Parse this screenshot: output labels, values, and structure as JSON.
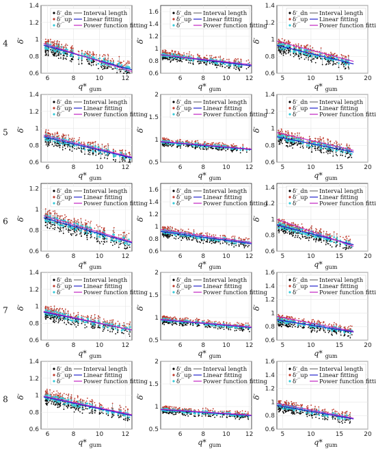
{
  "legend": {
    "markers": [
      "δ′_dn",
      "δ′_up",
      "δ′"
    ],
    "lines": [
      "Interval length",
      "Linear fitting",
      "Power function fitting"
    ]
  },
  "x_label": "q*",
  "x_label_sub": "gum",
  "y_label": "δ′",
  "colors": {
    "dn": "#000000",
    "up": "#c0392b",
    "mid": "#35c9d8",
    "interval": "#707070",
    "linear": "#2222cc",
    "power": "#c020c0"
  },
  "row_labels": [
    "4",
    "5",
    "6",
    "7",
    "8"
  ],
  "chart_data": [
    {
      "type": "scatter",
      "row": "4",
      "col": 1,
      "xlim": [
        5.5,
        12.5
      ],
      "ylim": [
        0.6,
        1.4
      ],
      "xticks": [
        6,
        8,
        10,
        12
      ],
      "yticks": [
        0.6,
        0.8,
        1,
        1.2,
        1.4
      ],
      "linear": {
        "x": [
          5.7,
          12.5
        ],
        "y": [
          0.93,
          0.64
        ]
      },
      "power": {
        "x": [
          5.7,
          12.5
        ],
        "y": [
          0.95,
          0.62
        ]
      },
      "spread": 0.08
    },
    {
      "type": "scatter",
      "row": "4",
      "col": 2,
      "xlim": [
        4.3,
        12.2
      ],
      "ylim": [
        0.6,
        1.7
      ],
      "xticks": [
        6,
        8,
        10,
        12
      ],
      "yticks": [
        0.6,
        0.8,
        1,
        1.2,
        1.4,
        1.6
      ],
      "linear": {
        "x": [
          4.3,
          12.2
        ],
        "y": [
          0.9,
          0.72
        ]
      },
      "power": {
        "x": [
          4.3,
          12.2
        ],
        "y": [
          0.9,
          0.74
        ]
      },
      "spread": 0.07
    },
    {
      "type": "scatter",
      "row": "4",
      "col": 3,
      "xlim": [
        4,
        20
      ],
      "ylim": [
        0.6,
        1.4
      ],
      "xticks": [
        5,
        10,
        15,
        20
      ],
      "yticks": [
        0.6,
        0.8,
        1,
        1.2,
        1.4
      ],
      "linear": {
        "x": [
          4,
          17.5
        ],
        "y": [
          0.93,
          0.71
        ]
      },
      "power": {
        "x": [
          4,
          17.5
        ],
        "y": [
          0.98,
          0.74
        ]
      },
      "spread": 0.07
    },
    {
      "type": "scatter",
      "row": "5",
      "col": 1,
      "xlim": [
        5.5,
        12.5
      ],
      "ylim": [
        0.6,
        1.4
      ],
      "xticks": [
        6,
        8,
        10,
        12
      ],
      "yticks": [
        0.6,
        0.8,
        1,
        1.2,
        1.4
      ],
      "linear": {
        "x": [
          5.7,
          12.5
        ],
        "y": [
          0.9,
          0.65
        ]
      },
      "power": {
        "x": [
          5.7,
          12.5
        ],
        "y": [
          0.92,
          0.66
        ]
      },
      "spread": 0.07
    },
    {
      "type": "scatter",
      "row": "5",
      "col": 2,
      "xlim": [
        4.3,
        12.2
      ],
      "ylim": [
        0.5,
        2
      ],
      "xticks": [
        6,
        8,
        10,
        12
      ],
      "yticks": [
        0.5,
        1,
        1.5,
        2
      ],
      "linear": {
        "x": [
          4.3,
          12.2
        ],
        "y": [
          0.95,
          0.78
        ]
      },
      "power": {
        "x": [
          4.3,
          12.2
        ],
        "y": [
          0.96,
          0.79
        ]
      },
      "spread": 0.07
    },
    {
      "type": "scatter",
      "row": "5",
      "col": 3,
      "xlim": [
        4,
        20
      ],
      "ylim": [
        0.6,
        1.4
      ],
      "xticks": [
        5,
        10,
        15,
        20
      ],
      "yticks": [
        0.6,
        0.8,
        1,
        1.2,
        1.4
      ],
      "linear": {
        "x": [
          4,
          17.5
        ],
        "y": [
          0.9,
          0.72
        ]
      },
      "power": {
        "x": [
          4,
          17.5
        ],
        "y": [
          0.95,
          0.74
        ]
      },
      "spread": 0.07
    },
    {
      "type": "scatter",
      "row": "6",
      "col": 1,
      "xlim": [
        5.5,
        12.5
      ],
      "ylim": [
        0.6,
        1.25
      ],
      "xticks": [
        6,
        8,
        10,
        12
      ],
      "yticks": [
        0.6,
        0.8,
        1,
        1.2
      ],
      "linear": {
        "x": [
          5.7,
          12.5
        ],
        "y": [
          0.92,
          0.68
        ]
      },
      "power": {
        "x": [
          5.7,
          12.5
        ],
        "y": [
          0.94,
          0.69
        ]
      },
      "spread": 0.07
    },
    {
      "type": "scatter",
      "row": "6",
      "col": 2,
      "xlim": [
        4.3,
        12.2
      ],
      "ylim": [
        0.6,
        1.7
      ],
      "xticks": [
        6,
        8,
        10,
        12
      ],
      "yticks": [
        0.6,
        0.8,
        1,
        1.2,
        1.4,
        1.6
      ],
      "linear": {
        "x": [
          4.3,
          12.2
        ],
        "y": [
          0.92,
          0.72
        ]
      },
      "power": {
        "x": [
          4.3,
          12.2
        ],
        "y": [
          0.95,
          0.74
        ]
      },
      "spread": 0.07
    },
    {
      "type": "scatter",
      "row": "6",
      "col": 3,
      "xlim": [
        4,
        20
      ],
      "ylim": [
        0.6,
        1.45
      ],
      "xticks": [
        5,
        10,
        15,
        20
      ],
      "yticks": [
        0.6,
        0.8,
        1,
        1.2,
        1.4
      ],
      "linear": {
        "x": [
          4,
          17.5
        ],
        "y": [
          0.93,
          0.68
        ]
      },
      "power": {
        "x": [
          4,
          17.5
        ],
        "y": [
          1.0,
          0.66
        ]
      },
      "spread": 0.07
    },
    {
      "type": "scatter",
      "row": "7",
      "col": 1,
      "xlim": [
        5.5,
        12.5
      ],
      "ylim": [
        0.6,
        1.4
      ],
      "xticks": [
        6,
        8,
        10,
        12
      ],
      "yticks": [
        0.6,
        0.8,
        1,
        1.2,
        1.4
      ],
      "linear": {
        "x": [
          5.7,
          12.5
        ],
        "y": [
          0.93,
          0.72
        ]
      },
      "power": {
        "x": [
          5.7,
          12.5
        ],
        "y": [
          0.94,
          0.72
        ]
      },
      "spread": 0.07
    },
    {
      "type": "scatter",
      "row": "7",
      "col": 2,
      "xlim": [
        4.3,
        12.2
      ],
      "ylim": [
        0.5,
        2
      ],
      "xticks": [
        6,
        8,
        10,
        12
      ],
      "yticks": [
        0.5,
        1,
        1.5,
        2
      ],
      "linear": {
        "x": [
          4.3,
          12.2
        ],
        "y": [
          0.95,
          0.78
        ]
      },
      "power": {
        "x": [
          4.3,
          12.2
        ],
        "y": [
          0.96,
          0.79
        ]
      },
      "spread": 0.07
    },
    {
      "type": "scatter",
      "row": "7",
      "col": 3,
      "xlim": [
        4,
        20
      ],
      "ylim": [
        0.6,
        1.6
      ],
      "xticks": [
        5,
        10,
        15,
        20
      ],
      "yticks": [
        0.6,
        0.8,
        1,
        1.2,
        1.4,
        1.6
      ],
      "linear": {
        "x": [
          4,
          17.5
        ],
        "y": [
          0.9,
          0.72
        ]
      },
      "power": {
        "x": [
          4,
          17.5
        ],
        "y": [
          0.95,
          0.73
        ]
      },
      "spread": 0.07
    },
    {
      "type": "scatter",
      "row": "8",
      "col": 1,
      "xlim": [
        5.5,
        12.5
      ],
      "ylim": [
        0.6,
        1.4
      ],
      "xticks": [
        6,
        8,
        10,
        12
      ],
      "yticks": [
        0.6,
        0.8,
        1,
        1.2,
        1.4
      ],
      "linear": {
        "x": [
          5.7,
          12.5
        ],
        "y": [
          0.98,
          0.76
        ]
      },
      "power": {
        "x": [
          5.7,
          12.5
        ],
        "y": [
          0.99,
          0.77
        ]
      },
      "spread": 0.07
    },
    {
      "type": "scatter",
      "row": "8",
      "col": 2,
      "xlim": [
        4.3,
        12.2
      ],
      "ylim": [
        0.5,
        2
      ],
      "xticks": [
        6,
        8,
        10,
        12
      ],
      "yticks": [
        0.5,
        1,
        1.5,
        2
      ],
      "linear": {
        "x": [
          4.3,
          12.2
        ],
        "y": [
          0.93,
          0.8
        ]
      },
      "power": {
        "x": [
          4.3,
          12.2
        ],
        "y": [
          0.94,
          0.81
        ]
      },
      "spread": 0.07
    },
    {
      "type": "scatter",
      "row": "8",
      "col": 3,
      "xlim": [
        4,
        20
      ],
      "ylim": [
        0.6,
        1.6
      ],
      "xticks": [
        5,
        10,
        15,
        20
      ],
      "yticks": [
        0.6,
        0.8,
        1,
        1.2,
        1.4,
        1.6
      ],
      "linear": {
        "x": [
          4,
          17.5
        ],
        "y": [
          0.95,
          0.75
        ]
      },
      "power": {
        "x": [
          4,
          17.5
        ],
        "y": [
          0.98,
          0.76
        ]
      },
      "spread": 0.07
    }
  ]
}
